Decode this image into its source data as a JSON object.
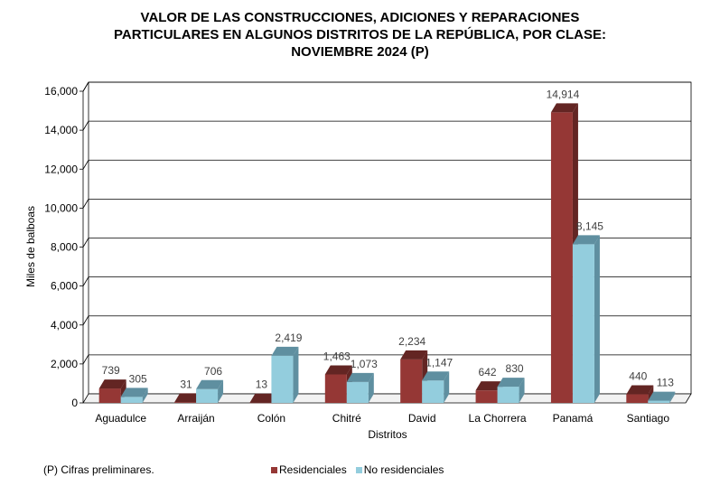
{
  "chart_data": {
    "type": "bar",
    "title_lines": [
      "VALOR DE LAS CONSTRUCCIONES, ADICIONES Y REPARACIONES",
      "PARTICULARES EN ALGUNOS DISTRITOS DE LA REPÚBLICA, POR CLASE:",
      "NOVIEMBRE 2024 (P)"
    ],
    "xlabel": "Distritos",
    "ylabel": "Miles de balboas",
    "ylim": [
      0,
      16000
    ],
    "yticks": [
      "0",
      "2,000",
      "4,000",
      "6,000",
      "8,000",
      "10,000",
      "12,000",
      "14,000",
      "16,000"
    ],
    "categories": [
      "Aguadulce",
      "Arraiján",
      "Colón",
      "Chitré",
      "David",
      "La Chorrera",
      "Panamá",
      "Santiago"
    ],
    "series": [
      {
        "name": "Residenciales",
        "color": "#953735",
        "top_color": "#632523",
        "values": [
          739,
          31,
          13,
          1463,
          2234,
          642,
          14914,
          440
        ],
        "labels": [
          "739",
          "31",
          "13",
          "1,463",
          "2,234",
          "642",
          "14,914",
          "440"
        ]
      },
      {
        "name": "No residenciales",
        "color": "#93cddd",
        "top_color": "#5f8fa0",
        "values": [
          305,
          706,
          2419,
          1073,
          1147,
          830,
          8145,
          113
        ],
        "labels": [
          "305",
          "706",
          "2,419",
          "1,073",
          "1,147",
          "830",
          "8,145",
          "113"
        ]
      }
    ],
    "grid": true,
    "legend": "bottom"
  },
  "footnote": "(P) Cifras  preliminares."
}
